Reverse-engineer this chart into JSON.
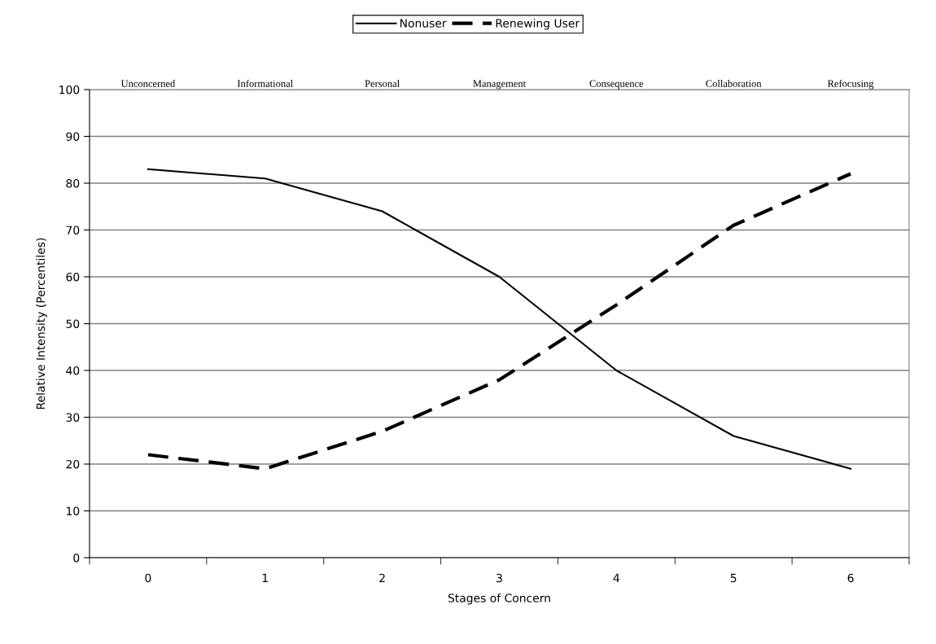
{
  "chart_data": {
    "type": "line",
    "xlabel": "Stages of Concern",
    "ylabel": "Relative Intensity (Percentiles)",
    "categories": [
      "0",
      "1",
      "2",
      "3",
      "4",
      "5",
      "6"
    ],
    "series": [
      {
        "name": "Nonuser",
        "color": "#000000",
        "line_style": "solid",
        "values": [
          83,
          81,
          74,
          60,
          40,
          26,
          19
        ]
      },
      {
        "name": "Renewing User",
        "color": "#000000",
        "line_style": "dashed",
        "values": [
          22,
          19,
          27,
          38,
          54,
          71,
          82
        ]
      }
    ],
    "annotations": [
      "Unconcerned",
      "Informational",
      "Personal",
      "Management",
      "Consequence",
      "Collaboration",
      "Refocusing"
    ],
    "ylim": [
      0,
      100
    ],
    "yticks": [
      0,
      10,
      20,
      30,
      40,
      50,
      60,
      70,
      80,
      90,
      100
    ],
    "grid": "y",
    "legend": "top",
    "marker": "none"
  }
}
